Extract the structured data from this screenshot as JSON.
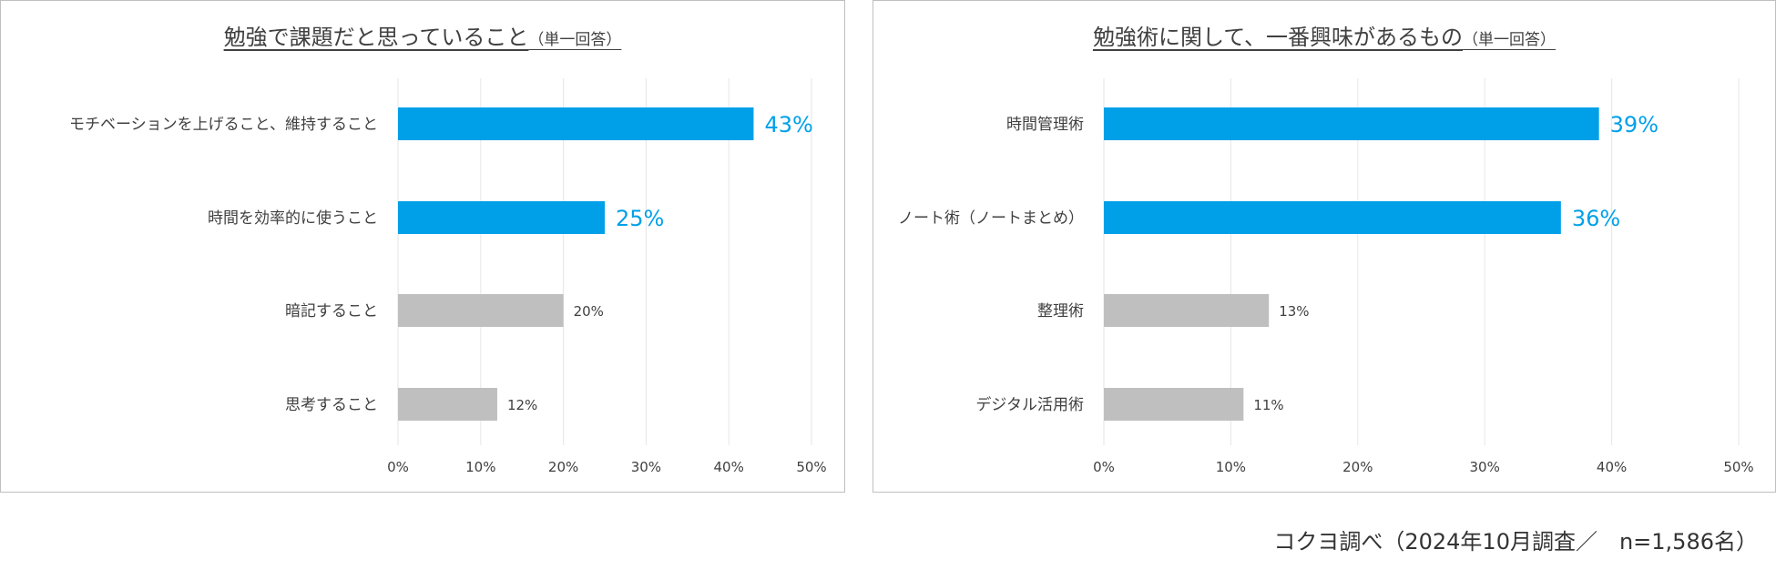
{
  "charts": [
    {
      "title": "勉強で課題だと思っていること",
      "subtitle": "（単一回答）"
    },
    {
      "title": "勉強術に関して、一番興味があるもの",
      "subtitle": "（単一回答）"
    }
  ],
  "source_note": "コクヨ調べ（2024年10月調査／　n=1,586名）",
  "colors": {
    "highlight": "#00a0e9",
    "normal": "#bfbfbf"
  },
  "chart_data": [
    {
      "type": "bar",
      "orientation": "horizontal",
      "title": "勉強で課題だと思っていること",
      "subtitle": "（単一回答）",
      "categories": [
        "モチベーションを上げること、維持すること",
        "時間を効率的に使うこと",
        "暗記すること",
        "思考すること"
      ],
      "values": [
        43,
        25,
        20,
        12
      ],
      "value_labels": [
        "43%",
        "25%",
        "20%",
        "12%"
      ],
      "highlighted": [
        true,
        true,
        false,
        false
      ],
      "xlim": [
        0,
        50
      ],
      "xticks": [
        "0%",
        "10%",
        "20%",
        "30%",
        "40%",
        "50%"
      ],
      "grid": true
    },
    {
      "type": "bar",
      "orientation": "horizontal",
      "title": "勉強術に関して、一番興味があるもの",
      "subtitle": "（単一回答）",
      "categories": [
        "時間管理術",
        "ノート術（ノートまとめ）",
        "整理術",
        "デジタル活用術"
      ],
      "values": [
        39,
        36,
        13,
        11
      ],
      "value_labels": [
        "39%",
        "36%",
        "13%",
        "11%"
      ],
      "highlighted": [
        true,
        true,
        false,
        false
      ],
      "xlim": [
        0,
        50
      ],
      "xticks": [
        "0%",
        "10%",
        "20%",
        "30%",
        "40%",
        "50%"
      ],
      "grid": true
    }
  ]
}
